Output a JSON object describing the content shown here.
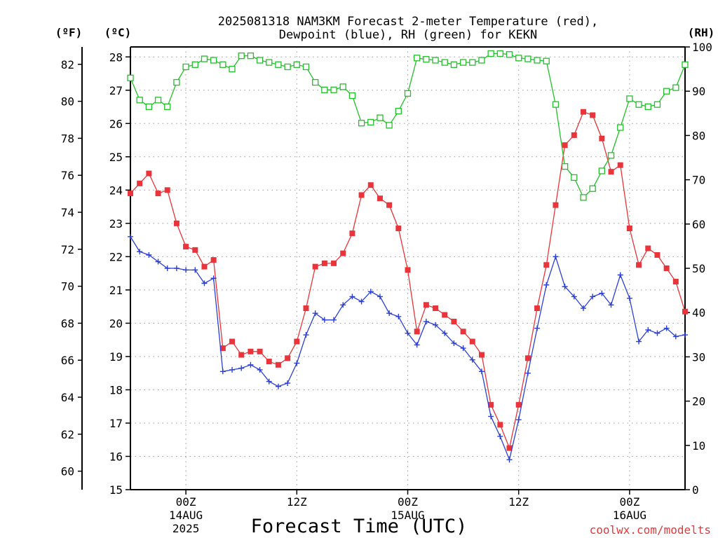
{
  "chart_data": {
    "type": "line",
    "title_line1": "2025081318 NAM3KM Forecast 2-meter Temperature (red),",
    "title_line2": "Dewpoint (blue), RH (green) for KEKN",
    "xlabel": "Forecast Time (UTC)",
    "watermark": "coolwx.com/modelts",
    "unit_f": "(ºF)",
    "unit_c": "(ºC)",
    "unit_rh": "(RH)",
    "x_hours": [
      18,
      19,
      20,
      21,
      22,
      23,
      24,
      25,
      26,
      27,
      28,
      29,
      30,
      31,
      32,
      33,
      34,
      35,
      36,
      37,
      38,
      39,
      40,
      41,
      42,
      43,
      44,
      45,
      46,
      47,
      48,
      49,
      50,
      51,
      52,
      53,
      54,
      55,
      56,
      57,
      58,
      59,
      60,
      61,
      62,
      63,
      64,
      65,
      66,
      67,
      68,
      69,
      70,
      71,
      72,
      73,
      74,
      75,
      76,
      77,
      78
    ],
    "xlim": [
      18,
      78
    ],
    "ylim_c": [
      15,
      28.3
    ],
    "ylim_rh": [
      0,
      100
    ],
    "x_ticks": [
      {
        "hour": 24,
        "label": "00Z",
        "sub1": "14AUG",
        "sub2": "2025"
      },
      {
        "hour": 36,
        "label": "12Z",
        "sub1": "",
        "sub2": ""
      },
      {
        "hour": 48,
        "label": "00Z",
        "sub1": "15AUG",
        "sub2": ""
      },
      {
        "hour": 60,
        "label": "12Z",
        "sub1": "",
        "sub2": ""
      },
      {
        "hour": 72,
        "label": "00Z",
        "sub1": "16AUG",
        "sub2": ""
      }
    ],
    "c_ticks": [
      "15",
      "16",
      "17",
      "18",
      "19",
      "20",
      "21",
      "22",
      "23",
      "24",
      "25",
      "26",
      "27",
      "28"
    ],
    "f_ticks": [
      "60",
      "62",
      "64",
      "66",
      "68",
      "70",
      "72",
      "74",
      "76",
      "78",
      "80",
      "82"
    ],
    "rh_ticks": [
      "0",
      "10",
      "20",
      "30",
      "40",
      "50",
      "60",
      "70",
      "80",
      "90",
      "100"
    ],
    "series": [
      {
        "name": "Temperature",
        "color": "#e8343a",
        "marker": "square-filled",
        "values": [
          23.9,
          24.2,
          24.5,
          23.9,
          24.0,
          23.0,
          22.3,
          22.2,
          21.7,
          21.9,
          19.25,
          19.45,
          19.05,
          19.15,
          19.15,
          18.85,
          18.75,
          18.95,
          19.45,
          20.45,
          21.7,
          21.8,
          21.8,
          22.1,
          22.7,
          23.85,
          24.15,
          23.75,
          23.55,
          22.85,
          21.6,
          19.75,
          20.55,
          20.45,
          20.25,
          20.05,
          19.75,
          19.45,
          19.05,
          17.55,
          16.95,
          16.25,
          17.55,
          18.95,
          20.45,
          21.75,
          23.55,
          25.35,
          25.65,
          26.35,
          26.25,
          25.55,
          24.55,
          24.75,
          22.85,
          21.75,
          22.25,
          22.05,
          21.65,
          21.25,
          20.35
        ]
      },
      {
        "name": "Dewpoint",
        "color": "#2b3fd8",
        "marker": "plus",
        "values": [
          22.6,
          22.15,
          22.05,
          21.85,
          21.65,
          21.65,
          21.6,
          21.6,
          21.2,
          21.35,
          18.55,
          18.6,
          18.65,
          18.75,
          18.6,
          18.25,
          18.1,
          18.2,
          18.8,
          19.65,
          20.3,
          20.1,
          20.1,
          20.55,
          20.8,
          20.65,
          20.95,
          20.8,
          20.3,
          20.2,
          19.7,
          19.35,
          20.05,
          19.95,
          19.7,
          19.4,
          19.25,
          18.9,
          18.55,
          17.2,
          16.6,
          15.9,
          17.1,
          18.5,
          19.85,
          21.15,
          22.0,
          21.1,
          20.8,
          20.45,
          20.8,
          20.9,
          20.55,
          21.45,
          20.75,
          19.45,
          19.8,
          19.7,
          19.85,
          19.6,
          19.65
        ]
      },
      {
        "name": "RH",
        "color": "#22c02a",
        "marker": "square-open",
        "values": [
          93,
          88,
          86.5,
          88,
          86.5,
          92,
          95.5,
          96,
          97.3,
          97,
          96,
          95,
          98,
          98,
          97,
          96.5,
          96,
          95.5,
          96,
          95.5,
          92,
          90.3,
          90.3,
          91,
          89,
          82.8,
          83,
          84,
          82.3,
          85.5,
          89.5,
          97.5,
          97.2,
          97,
          96.5,
          96,
          96.5,
          96.5,
          97,
          98.5,
          98.5,
          98.3,
          97.5,
          97.3,
          97,
          96.8,
          87,
          73,
          70.5,
          66,
          68,
          72,
          75.5,
          81.8,
          88.3,
          87,
          86.5,
          87,
          90,
          90.8,
          96
        ]
      }
    ]
  }
}
